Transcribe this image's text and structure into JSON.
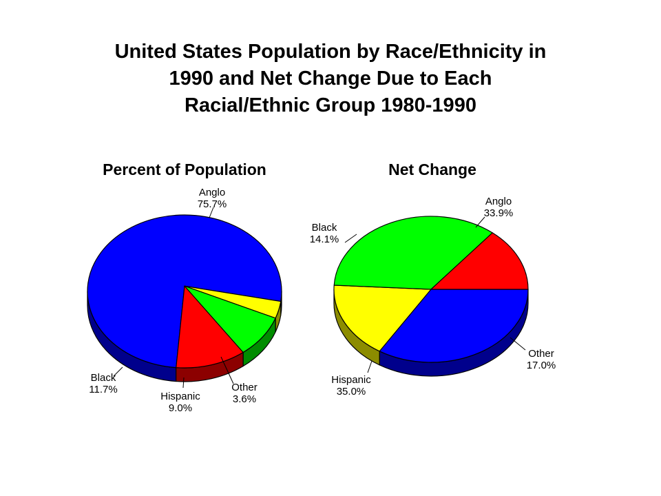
{
  "title_lines": [
    "United States Population by Race/Ethnicity in",
    "1990 and Net Change Due to Each",
    "Racial/Ethnic Group 1980-1990"
  ],
  "chart_data": [
    {
      "type": "pie",
      "title": "Percent of Population",
      "slices": [
        {
          "label": "Anglo",
          "value": 75.7,
          "value_label": "75.7%",
          "color": "#0000FF"
        },
        {
          "label": "Other",
          "value": 3.6,
          "value_label": "3.6%",
          "color": "#FFFF00"
        },
        {
          "label": "Hispanic",
          "value": 9.0,
          "value_label": "9.0%",
          "color": "#00FF00"
        },
        {
          "label": "Black",
          "value": 11.7,
          "value_label": "11.7%",
          "color": "#FF0000"
        }
      ]
    },
    {
      "type": "pie",
      "title": "Net Change",
      "slices": [
        {
          "label": "Anglo",
          "value": 33.9,
          "value_label": "33.9%",
          "color": "#0000FF"
        },
        {
          "label": "Other",
          "value": 17.0,
          "value_label": "17.0%",
          "color": "#FFFF00"
        },
        {
          "label": "Hispanic",
          "value": 35.0,
          "value_label": "35.0%",
          "color": "#00FF00"
        },
        {
          "label": "Black",
          "value": 14.1,
          "value_label": "14.1%",
          "color": "#FF0000"
        }
      ]
    }
  ]
}
